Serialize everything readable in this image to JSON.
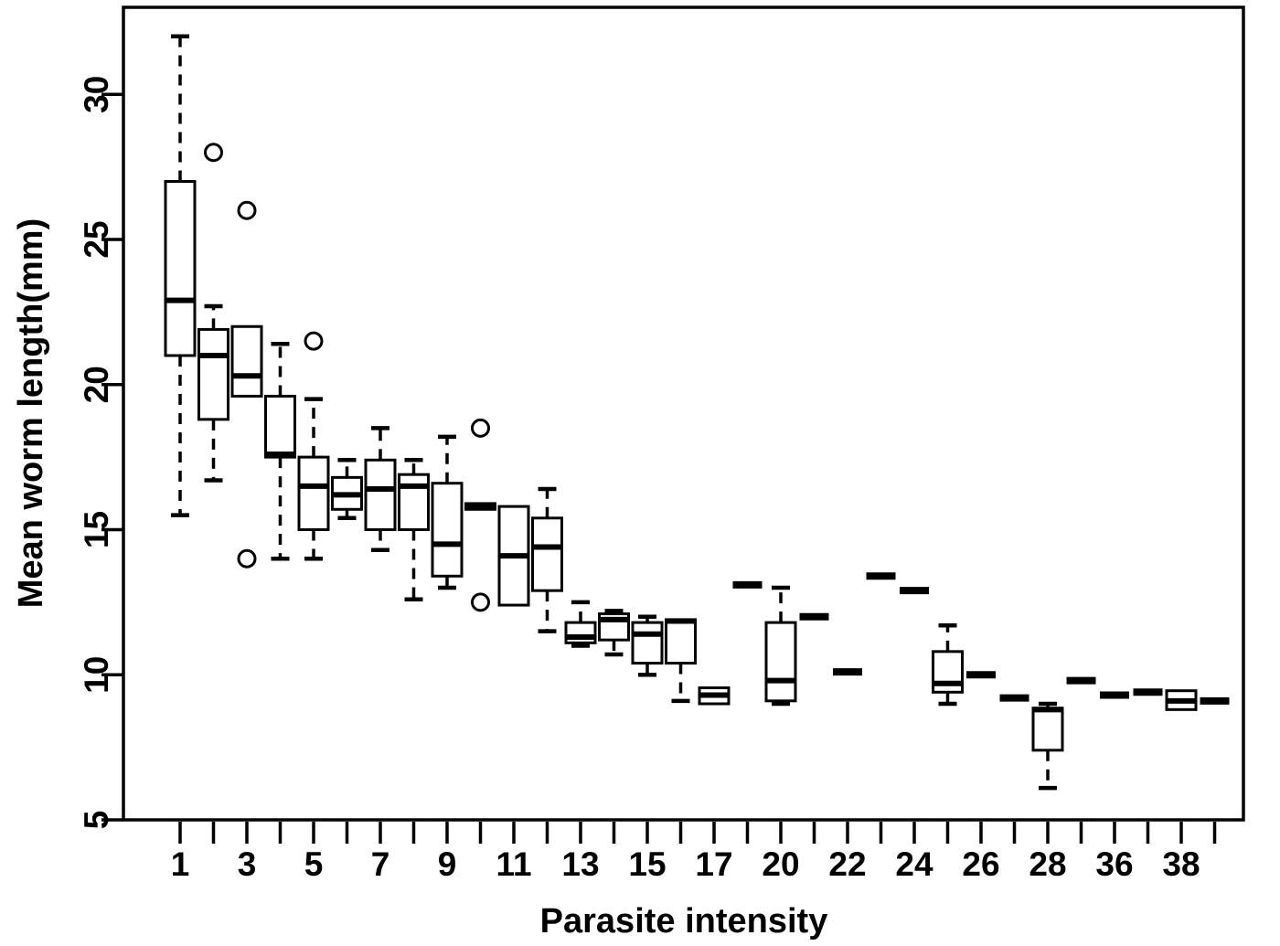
{
  "figure": {
    "background": "#ffffff",
    "ink_color": "#000000"
  },
  "chart_data": {
    "type": "boxplot",
    "title": "",
    "xlabel": "Parasite intensity",
    "ylabel": "Mean worm length(mm)",
    "ylim": [
      5,
      33
    ],
    "yticks": [
      5,
      10,
      15,
      20,
      25,
      30
    ],
    "grid": false,
    "frame": true,
    "legend": null,
    "x_tick_count": 32,
    "groups": [
      {
        "x_label": "1",
        "low": 15.5,
        "q1": 21.0,
        "median": 22.9,
        "q3": 27.0,
        "high": 32.0,
        "outliers": []
      },
      {
        "x_label": "",
        "low": 16.7,
        "q1": 18.8,
        "median": 21.0,
        "q3": 21.9,
        "high": 22.7,
        "outliers": [
          28.0
        ]
      },
      {
        "x_label": "3",
        "low": 19.6,
        "q1": 19.6,
        "median": 20.3,
        "q3": 22.0,
        "high": 22.0,
        "outliers": [
          26.0,
          14.0
        ]
      },
      {
        "x_label": "",
        "low": 14.0,
        "q1": 17.5,
        "median": 17.6,
        "q3": 19.6,
        "high": 21.4,
        "outliers": []
      },
      {
        "x_label": "5",
        "low": 14.0,
        "q1": 15.0,
        "median": 16.5,
        "q3": 17.5,
        "high": 19.5,
        "outliers": [
          21.5
        ]
      },
      {
        "x_label": "",
        "low": 15.4,
        "q1": 15.7,
        "median": 16.2,
        "q3": 16.8,
        "high": 17.4,
        "outliers": []
      },
      {
        "x_label": "7",
        "low": 14.3,
        "q1": 15.0,
        "median": 16.4,
        "q3": 17.4,
        "high": 18.5,
        "outliers": []
      },
      {
        "x_label": "",
        "low": 12.6,
        "q1": 15.0,
        "median": 16.5,
        "q3": 16.9,
        "high": 17.4,
        "outliers": []
      },
      {
        "x_label": "9",
        "low": 13.0,
        "q1": 13.4,
        "median": 14.5,
        "q3": 16.6,
        "high": 18.2,
        "outliers": []
      },
      {
        "x_label": "",
        "low": 15.7,
        "q1": 15.7,
        "median": 15.8,
        "q3": 15.9,
        "high": 15.9,
        "outliers": [
          18.5,
          12.5
        ]
      },
      {
        "x_label": "11",
        "low": 12.4,
        "q1": 12.4,
        "median": 14.1,
        "q3": 15.8,
        "high": 15.8,
        "outliers": []
      },
      {
        "x_label": "",
        "low": 11.5,
        "q1": 12.9,
        "median": 14.4,
        "q3": 15.4,
        "high": 16.4,
        "outliers": []
      },
      {
        "x_label": "13",
        "low": 11.0,
        "q1": 11.1,
        "median": 11.3,
        "q3": 11.8,
        "high": 12.5,
        "outliers": []
      },
      {
        "x_label": "",
        "low": 10.7,
        "q1": 11.2,
        "median": 11.9,
        "q3": 12.1,
        "high": 12.2,
        "outliers": []
      },
      {
        "x_label": "15",
        "low": 10.0,
        "q1": 10.4,
        "median": 11.4,
        "q3": 11.8,
        "high": 12.0,
        "outliers": []
      },
      {
        "x_label": "",
        "low": 9.1,
        "q1": 10.4,
        "median": 11.85,
        "q3": 11.9,
        "high": 11.9,
        "outliers": []
      },
      {
        "x_label": "17",
        "low": 9.0,
        "q1": 9.0,
        "median": 9.3,
        "q3": 9.55,
        "high": 9.55,
        "outliers": []
      },
      {
        "x_label": "",
        "low": 13.1,
        "q1": 13.1,
        "median": 13.1,
        "q3": 13.1,
        "high": 13.1,
        "outliers": []
      },
      {
        "x_label": "20",
        "low": 9.0,
        "q1": 9.1,
        "median": 9.8,
        "q3": 11.8,
        "high": 13.0,
        "outliers": []
      },
      {
        "x_label": "",
        "low": 12.0,
        "q1": 12.0,
        "median": 12.0,
        "q3": 12.0,
        "high": 12.0,
        "outliers": []
      },
      {
        "x_label": "22",
        "low": 10.1,
        "q1": 10.1,
        "median": 10.1,
        "q3": 10.1,
        "high": 10.1,
        "outliers": []
      },
      {
        "x_label": "",
        "low": 13.4,
        "q1": 13.4,
        "median": 13.4,
        "q3": 13.4,
        "high": 13.4,
        "outliers": []
      },
      {
        "x_label": "24",
        "low": 12.9,
        "q1": 12.9,
        "median": 12.9,
        "q3": 12.9,
        "high": 12.9,
        "outliers": []
      },
      {
        "x_label": "",
        "low": 9.0,
        "q1": 9.4,
        "median": 9.7,
        "q3": 10.8,
        "high": 11.7,
        "outliers": []
      },
      {
        "x_label": "26",
        "low": 10.0,
        "q1": 10.0,
        "median": 10.0,
        "q3": 10.0,
        "high": 10.0,
        "outliers": []
      },
      {
        "x_label": "",
        "low": 9.2,
        "q1": 9.2,
        "median": 9.2,
        "q3": 9.2,
        "high": 9.2,
        "outliers": []
      },
      {
        "x_label": "28",
        "low": 6.1,
        "q1": 7.4,
        "median": 8.8,
        "q3": 8.85,
        "high": 9.0,
        "outliers": []
      },
      {
        "x_label": "",
        "low": 9.8,
        "q1": 9.8,
        "median": 9.8,
        "q3": 9.8,
        "high": 9.8,
        "outliers": []
      },
      {
        "x_label": "36",
        "low": 9.3,
        "q1": 9.3,
        "median": 9.3,
        "q3": 9.3,
        "high": 9.3,
        "outliers": []
      },
      {
        "x_label": "",
        "low": 9.4,
        "q1": 9.4,
        "median": 9.4,
        "q3": 9.4,
        "high": 9.4,
        "outliers": []
      },
      {
        "x_label": "38",
        "low": 8.8,
        "q1": 8.8,
        "median": 9.1,
        "q3": 9.45,
        "high": 9.45,
        "outliers": []
      },
      {
        "x_label": "",
        "low": 9.1,
        "q1": 9.1,
        "median": 9.1,
        "q3": 9.1,
        "high": 9.1,
        "outliers": []
      }
    ]
  }
}
